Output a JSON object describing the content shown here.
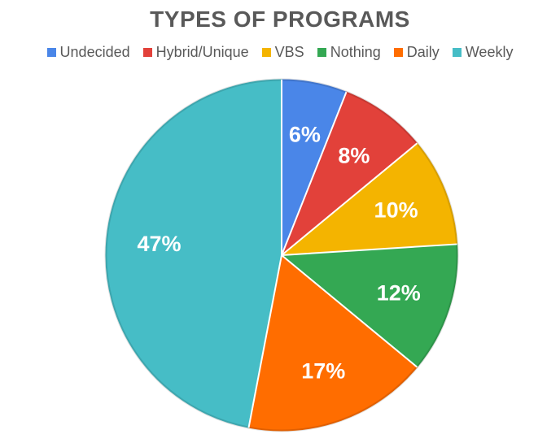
{
  "chart_data": {
    "type": "pie",
    "title": "TYPES OF PROGRAMS",
    "legend_position": "top",
    "slices": [
      {
        "name": "Undecided",
        "value": 6,
        "label": "6%",
        "color": "#4a86e8"
      },
      {
        "name": "Hybrid/Unique",
        "value": 8,
        "label": "8%",
        "color": "#e2413a"
      },
      {
        "name": "VBS",
        "value": 10,
        "label": "10%",
        "color": "#f4b400"
      },
      {
        "name": "Nothing",
        "value": 12,
        "label": "12%",
        "color": "#34a853"
      },
      {
        "name": "Daily",
        "value": 17,
        "label": "17%",
        "color": "#ff6d00"
      },
      {
        "name": "Weekly",
        "value": 47,
        "label": "47%",
        "color": "#46bdc6"
      }
    ]
  }
}
